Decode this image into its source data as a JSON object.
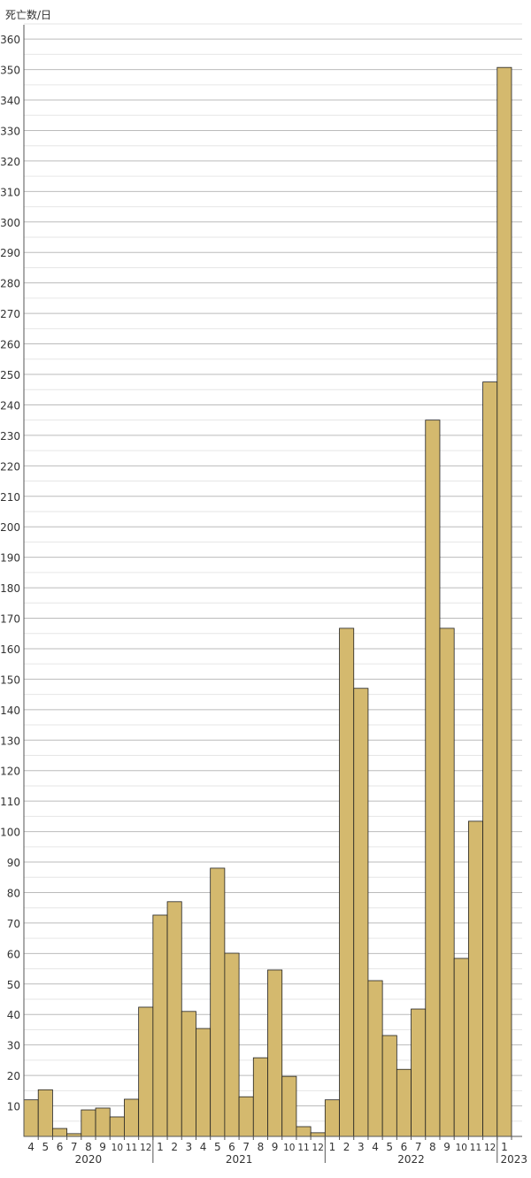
{
  "chart_data": {
    "type": "bar",
    "ylabel": "死亡数/日",
    "ylim": [
      0,
      365
    ],
    "yticks": [
      10,
      20,
      30,
      40,
      50,
      60,
      70,
      80,
      90,
      100,
      110,
      120,
      130,
      140,
      150,
      160,
      170,
      180,
      190,
      200,
      210,
      220,
      230,
      240,
      250,
      260,
      270,
      280,
      290,
      300,
      310,
      320,
      330,
      340,
      350,
      360
    ],
    "grid": true,
    "bar_color": "#d4b96e",
    "bar_edge_color": "#222222",
    "years": [
      {
        "label": "2020",
        "months": [
          "4",
          "5",
          "6",
          "7",
          "8",
          "9",
          "10",
          "11",
          "12"
        ]
      },
      {
        "label": "2021",
        "months": [
          "1",
          "2",
          "3",
          "4",
          "5",
          "6",
          "7",
          "8",
          "9",
          "10",
          "11",
          "12"
        ]
      },
      {
        "label": "2022",
        "months": [
          "1",
          "2",
          "3",
          "4",
          "5",
          "6",
          "7",
          "8",
          "9",
          "10",
          "11",
          "12"
        ]
      },
      {
        "label": "2023",
        "months": [
          "1"
        ]
      }
    ],
    "values": [
      12,
      15.3,
      2.6,
      0.9,
      8.7,
      9.3,
      6.4,
      12.2,
      42.4,
      72.6,
      77,
      41,
      35.4,
      88,
      60.1,
      13,
      25.8,
      54.6,
      19.7,
      3.2,
      1.2,
      12,
      166.7,
      147,
      51.1,
      33.1,
      22,
      41.8,
      235,
      166.7,
      58.4,
      103.4,
      247.5,
      350.7
    ]
  }
}
